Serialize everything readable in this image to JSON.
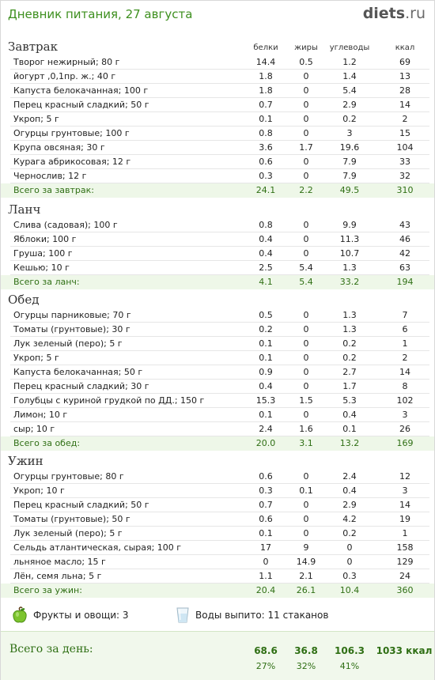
{
  "header": {
    "title": "Дневник питания, 27 августа",
    "logo_main": "diets",
    "logo_tld": ".ru"
  },
  "columns": [
    "белки",
    "жиры",
    "углеводы",
    "ккал"
  ],
  "sections": [
    {
      "title": "Завтрак",
      "items": [
        [
          "Творог нежирный; 80 г",
          "14.4",
          "0.5",
          "1.2",
          "69"
        ],
        [
          "йогурт ,0,1пр. ж.; 40 г",
          "1.8",
          "0",
          "1.4",
          "13"
        ],
        [
          "Капуста белокачанная; 100 г",
          "1.8",
          "0",
          "5.4",
          "28"
        ],
        [
          "Перец красный сладкий; 50 г",
          "0.7",
          "0",
          "2.9",
          "14"
        ],
        [
          "Укроп; 5 г",
          "0.1",
          "0",
          "0.2",
          "2"
        ],
        [
          "Огурцы грунтовые; 100 г",
          "0.8",
          "0",
          "3",
          "15"
        ],
        [
          "Крупа овсяная; 30 г",
          "3.6",
          "1.7",
          "19.6",
          "104"
        ],
        [
          "Курага абрикосовая; 12 г",
          "0.6",
          "0",
          "7.9",
          "33"
        ],
        [
          "Чернослив; 12 г",
          "0.3",
          "0",
          "7.9",
          "32"
        ]
      ],
      "total": [
        "Всего за завтрак:",
        "24.1",
        "2.2",
        "49.5",
        "310"
      ]
    },
    {
      "title": "Ланч",
      "items": [
        [
          "Слива (садовая); 100 г",
          "0.8",
          "0",
          "9.9",
          "43"
        ],
        [
          "Яблоки; 100 г",
          "0.4",
          "0",
          "11.3",
          "46"
        ],
        [
          "Груша; 100 г",
          "0.4",
          "0",
          "10.7",
          "42"
        ],
        [
          "Кешью; 10 г",
          "2.5",
          "5.4",
          "1.3",
          "63"
        ]
      ],
      "total": [
        "Всего за ланч:",
        "4.1",
        "5.4",
        "33.2",
        "194"
      ]
    },
    {
      "title": "Обед",
      "items": [
        [
          "Огурцы парниковые; 70 г",
          "0.5",
          "0",
          "1.3",
          "7"
        ],
        [
          "Томаты (грунтовые); 30 г",
          "0.2",
          "0",
          "1.3",
          "6"
        ],
        [
          "Лук зеленый (перо); 5 г",
          "0.1",
          "0",
          "0.2",
          "1"
        ],
        [
          "Укроп; 5 г",
          "0.1",
          "0",
          "0.2",
          "2"
        ],
        [
          "Капуста белокачанная; 50 г",
          "0.9",
          "0",
          "2.7",
          "14"
        ],
        [
          "Перец красный сладкий; 30 г",
          "0.4",
          "0",
          "1.7",
          "8"
        ],
        [
          "Голубцы с куриной грудкой по ДД.; 150 г",
          "15.3",
          "1.5",
          "5.3",
          "102"
        ],
        [
          "Лимон; 10 г",
          "0.1",
          "0",
          "0.4",
          "3"
        ],
        [
          "сыр; 10 г",
          "2.4",
          "1.6",
          "0.1",
          "26"
        ]
      ],
      "total": [
        "Всего за обед:",
        "20.0",
        "3.1",
        "13.2",
        "169"
      ]
    },
    {
      "title": "Ужин",
      "items": [
        [
          "Огурцы грунтовые; 80 г",
          "0.6",
          "0",
          "2.4",
          "12"
        ],
        [
          "Укроп; 10 г",
          "0.3",
          "0.1",
          "0.4",
          "3"
        ],
        [
          "Перец красный сладкий; 50 г",
          "0.7",
          "0",
          "2.9",
          "14"
        ],
        [
          "Томаты (грунтовые); 50 г",
          "0.6",
          "0",
          "4.2",
          "19"
        ],
        [
          "Лук зеленый (перо); 5 г",
          "0.1",
          "0",
          "0.2",
          "1"
        ],
        [
          "Сельдь атлантическая, сырая; 100 г",
          "17",
          "9",
          "0",
          "158"
        ],
        [
          "льняное масло; 15 г",
          "0",
          "14.9",
          "0",
          "129"
        ],
        [
          "Лён, семя льна; 5 г",
          "1.1",
          "2.1",
          "0.3",
          "24"
        ]
      ],
      "total": [
        "Всего за ужин:",
        "20.4",
        "26.1",
        "10.4",
        "360"
      ]
    }
  ],
  "fruits": {
    "label": "Фрукты и овощи: 3",
    "icon": "apple-icon"
  },
  "water": {
    "label": "Воды выпито: 11 стаканов",
    "icon": "glass-icon"
  },
  "day": {
    "label": "Всего за день:",
    "protein": "68.6",
    "fat": "36.8",
    "carbs": "106.3",
    "kcal": "1033 ккал",
    "protein_pct": "27%",
    "fat_pct": "32%",
    "carbs_pct": "41%"
  },
  "colors": {
    "title_green": "#3d8f1e",
    "total_bg": "#eef7e8",
    "total_text": "#2f6f14"
  }
}
